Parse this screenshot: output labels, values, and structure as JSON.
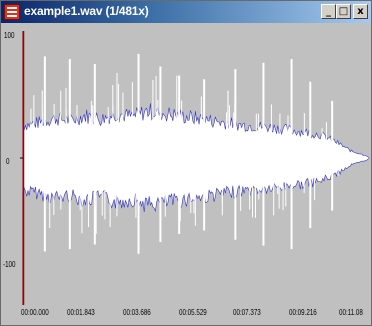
{
  "window": {
    "title": "example1.wav (1/481x)",
    "minimize_label": "_",
    "maximize_label": "□",
    "close_label": "x"
  },
  "colors": {
    "plot_background": "#c0c0c0",
    "waveform": "#ffffff",
    "waveform_edge": "#3030c8",
    "cursor_line": "#a00000"
  },
  "chart_data": {
    "type": "area",
    "y_ticks": [
      "100",
      "0",
      "-100"
    ],
    "x_ticks": [
      "00:00.000",
      "00:01.843",
      "00:03.686",
      "00:05.529",
      "00:07.373",
      "00:09.216",
      "00:11.08"
    ],
    "ylim": [
      -100,
      100
    ],
    "xlim_seconds": [
      0,
      11.08
    ],
    "grid": false,
    "envelope": {
      "time_seconds": [
        0,
        0.5,
        1.0,
        1.5,
        2.0,
        2.5,
        3.0,
        3.5,
        4.0,
        4.5,
        5.0,
        5.5,
        6.0,
        6.5,
        7.0,
        7.5,
        8.0,
        8.5,
        9.0,
        9.5,
        10.0,
        10.5,
        11.0,
        11.08
      ],
      "amplitude": [
        28,
        30,
        34,
        32,
        36,
        33,
        38,
        35,
        40,
        38,
        36,
        34,
        32,
        30,
        28,
        27,
        26,
        24,
        22,
        20,
        14,
        6,
        2,
        0
      ]
    },
    "peaks": [
      {
        "time_seconds": 0.7,
        "amplitude": 80
      },
      {
        "time_seconds": 1.5,
        "amplitude": 78
      },
      {
        "time_seconds": 2.3,
        "amplitude": 74
      },
      {
        "time_seconds": 3.7,
        "amplitude": 82
      },
      {
        "time_seconds": 4.4,
        "amplitude": 72
      },
      {
        "time_seconds": 5.0,
        "amplitude": 65
      },
      {
        "time_seconds": 5.8,
        "amplitude": 62
      },
      {
        "time_seconds": 6.8,
        "amplitude": 70
      },
      {
        "time_seconds": 7.7,
        "amplitude": 75
      },
      {
        "time_seconds": 8.6,
        "amplitude": 78
      },
      {
        "time_seconds": 9.2,
        "amplitude": 60
      },
      {
        "time_seconds": 9.9,
        "amplitude": 45
      }
    ]
  }
}
